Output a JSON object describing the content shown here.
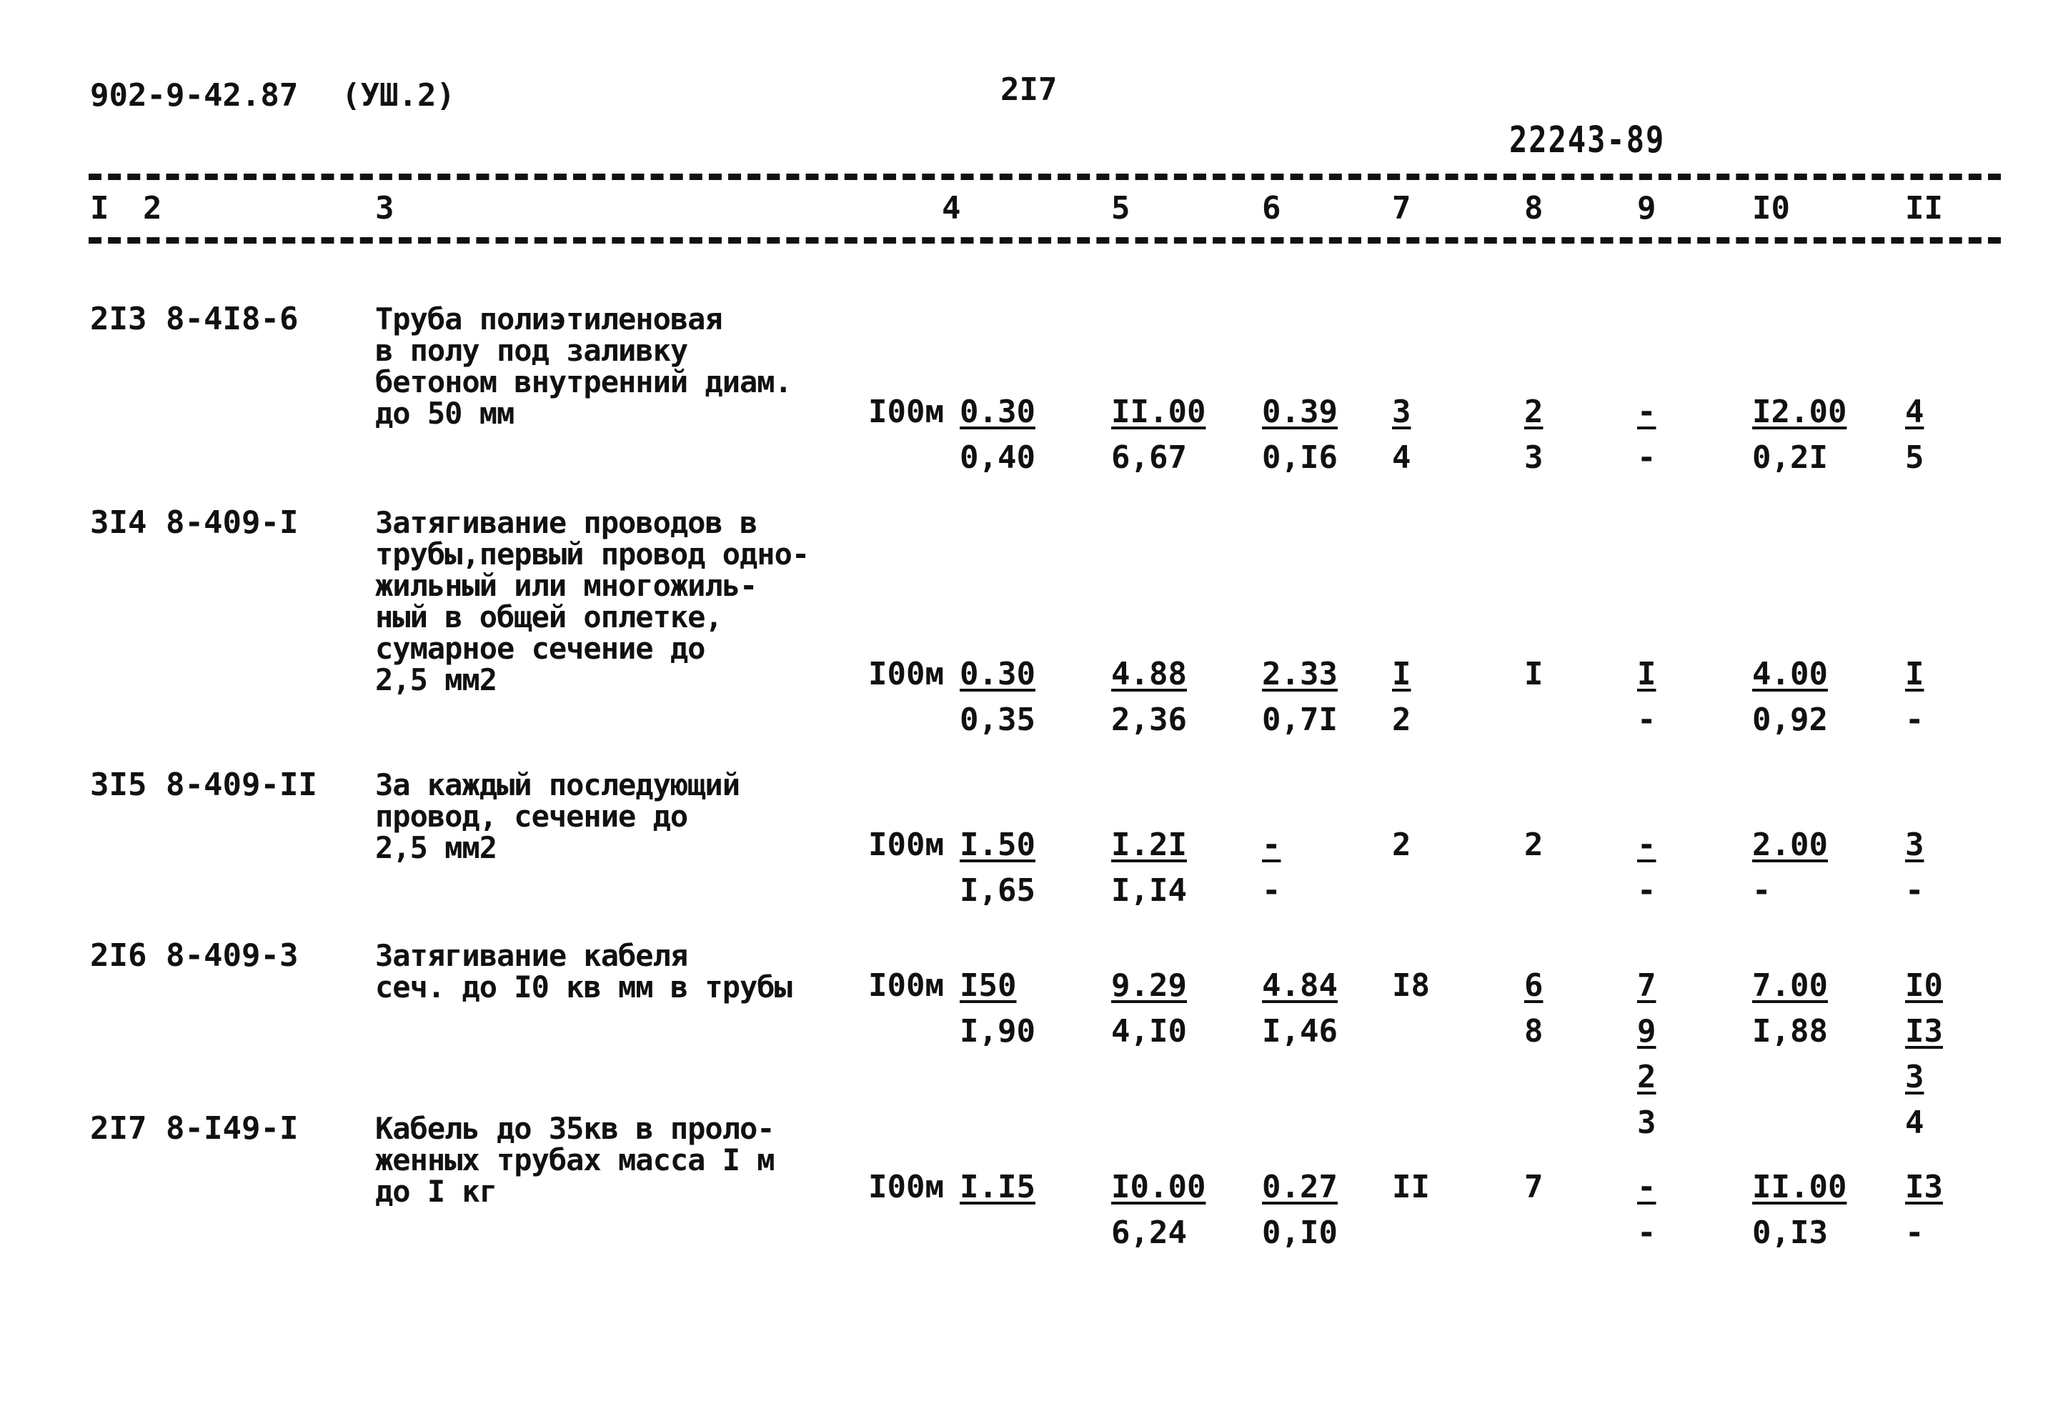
{
  "header": {
    "doc_code": "902-9-42.87",
    "volume": "(УШ.2)",
    "page_number": "2I7",
    "stamp": "22243-89"
  },
  "column_headers": [
    "I",
    "2",
    "3",
    "4",
    "5",
    "6",
    "7",
    "8",
    "9",
    "I0",
    "II"
  ],
  "rows": [
    {
      "num": "2I3",
      "code": "8-4I8-6",
      "description": [
        "Труба полиэтиленовая",
        "в полу под заливку",
        "бетоном внутренний диам.",
        "до 50 мм"
      ],
      "unit": "I00м",
      "cells": [
        [
          {
            "t": "0.30",
            "u": true
          },
          {
            "t": "0,40",
            "u": false
          }
        ],
        [
          {
            "t": "II.00",
            "u": true
          },
          {
            "t": "6,67",
            "u": false
          }
        ],
        [
          {
            "t": "0.39",
            "u": true
          },
          {
            "t": "0,I6",
            "u": false
          }
        ],
        [
          {
            "t": "3",
            "u": true
          },
          {
            "t": "4",
            "u": false
          }
        ],
        [
          {
            "t": "2",
            "u": true
          },
          {
            "t": "3",
            "u": false
          }
        ],
        [
          {
            "t": "-",
            "u": true
          },
          {
            "t": "-",
            "u": false
          }
        ],
        [
          {
            "t": "I2.00",
            "u": true
          },
          {
            "t": "0,2I",
            "u": false
          }
        ],
        [
          {
            "t": "4",
            "u": true
          },
          {
            "t": "5",
            "u": false
          }
        ]
      ]
    },
    {
      "num": "3I4",
      "code": "8-409-I",
      "description": [
        "Затягивание проводов в",
        "трубы,первый провод одно-",
        "жильный или многожиль-",
        "ный в общей оплетке,",
        "сумарное сечение до",
        "2,5 мм2"
      ],
      "unit": "I00м",
      "cells": [
        [
          {
            "t": "0.30",
            "u": true
          },
          {
            "t": "0,35",
            "u": false
          }
        ],
        [
          {
            "t": "4.88",
            "u": true
          },
          {
            "t": "2,36",
            "u": false
          }
        ],
        [
          {
            "t": "2.33",
            "u": true
          },
          {
            "t": "0,7I",
            "u": false
          }
        ],
        [
          {
            "t": "I",
            "u": true
          },
          {
            "t": "2",
            "u": false
          }
        ],
        [
          {
            "t": "I",
            "u": false
          }
        ],
        [
          {
            "t": "I",
            "u": true
          },
          {
            "t": "-",
            "u": false
          }
        ],
        [
          {
            "t": "4.00",
            "u": true
          },
          {
            "t": "0,92",
            "u": false
          }
        ],
        [
          {
            "t": "I",
            "u": true
          },
          {
            "t": "-",
            "u": false
          }
        ]
      ]
    },
    {
      "num": "3I5",
      "code": "8-409-II",
      "description": [
        "За каждый последующий",
        "провод, сечение до",
        "2,5 мм2"
      ],
      "unit": "I00м",
      "cells": [
        [
          {
            "t": "I.50",
            "u": true
          },
          {
            "t": "I,65",
            "u": false
          }
        ],
        [
          {
            "t": "I.2I",
            "u": true
          },
          {
            "t": "I,I4",
            "u": false
          }
        ],
        [
          {
            "t": "-",
            "u": true
          },
          {
            "t": "-",
            "u": false
          }
        ],
        [
          {
            "t": "2",
            "u": false
          }
        ],
        [
          {
            "t": "2",
            "u": false
          }
        ],
        [
          {
            "t": "-",
            "u": true
          },
          {
            "t": "-",
            "u": false
          }
        ],
        [
          {
            "t": "2.00",
            "u": true
          },
          {
            "t": "-",
            "u": false
          }
        ],
        [
          {
            "t": "3",
            "u": true
          },
          {
            "t": "-",
            "u": false
          }
        ]
      ]
    },
    {
      "num": "2I6",
      "code": "8-409-3",
      "description": [
        "Затягивание кабеля",
        "сеч. до I0 кв мм в трубы"
      ],
      "unit": "I00м",
      "cells": [
        [
          {
            "t": "I50",
            "u": true
          },
          {
            "t": "I,90",
            "u": false
          }
        ],
        [
          {
            "t": "9.29",
            "u": true
          },
          {
            "t": "4,I0",
            "u": false
          }
        ],
        [
          {
            "t": "4.84",
            "u": true
          },
          {
            "t": "I,46",
            "u": false
          }
        ],
        [
          {
            "t": "I8",
            "u": false
          }
        ],
        [
          {
            "t": "6",
            "u": true
          },
          {
            "t": "8",
            "u": false
          }
        ],
        [
          {
            "t": "7",
            "u": true
          },
          {
            "t": "9",
            "u": true
          },
          {
            "t": "2",
            "u": true
          },
          {
            "t": "3",
            "u": false
          }
        ],
        [
          {
            "t": "7.00",
            "u": true
          },
          {
            "t": "I,88",
            "u": false
          }
        ],
        [
          {
            "t": "I0",
            "u": true
          },
          {
            "t": "I3",
            "u": true
          },
          {
            "t": "3",
            "u": true
          },
          {
            "t": "4",
            "u": false
          }
        ]
      ]
    },
    {
      "num": "2I7",
      "code": "8-I49-I",
      "description": [
        "Кабель до 35кв в проло-",
        "женных трубах масса I м",
        "до I кг"
      ],
      "unit": "I00м",
      "cells": [
        [
          {
            "t": "I.I5",
            "u": true
          }
        ],
        [
          {
            "t": "I0.00",
            "u": true
          },
          {
            "t": "6,24",
            "u": false
          }
        ],
        [
          {
            "t": "0.27",
            "u": true
          },
          {
            "t": "0,I0",
            "u": false
          }
        ],
        [
          {
            "t": "II",
            "u": false
          }
        ],
        [
          {
            "t": "7",
            "u": false
          }
        ],
        [
          {
            "t": "-",
            "u": true
          },
          {
            "t": "-",
            "u": false
          }
        ],
        [
          {
            "t": "II.00",
            "u": true
          },
          {
            "t": "0,I3",
            "u": false
          }
        ],
        [
          {
            "t": "I3",
            "u": true
          },
          {
            "t": "-",
            "u": false
          }
        ]
      ]
    }
  ]
}
